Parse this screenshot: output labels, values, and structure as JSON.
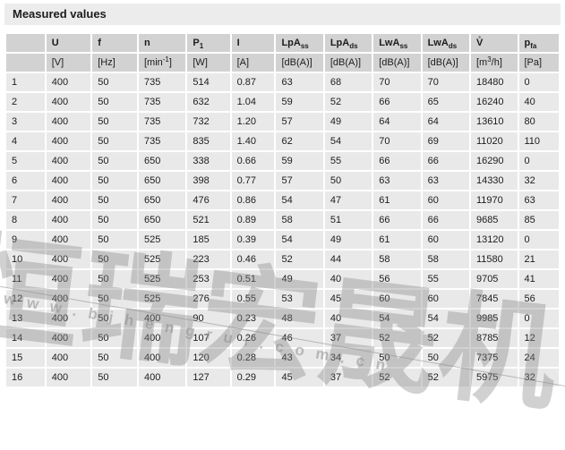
{
  "title": "Measured values",
  "colors": {
    "title-bg": "#ececec",
    "header-bg": "#d2d2d2",
    "row-bg": "#e9e9e9",
    "text": "#1c1c1c",
    "watermark": "rgba(135,135,135,0.38)",
    "watermark-strong": "rgba(140,140,140,0.55)"
  },
  "watermark": {
    "cn_text": "恒瑞宏晟机电",
    "url_text": "www.bjhengrui.com.cn"
  },
  "table": {
    "columns": [
      {
        "symbol": "",
        "unit": ""
      },
      {
        "symbol": "U",
        "unit": "[V]"
      },
      {
        "symbol": "f",
        "unit": "[Hz]"
      },
      {
        "symbol": "n",
        "unit": "[min^{-1}]"
      },
      {
        "symbol": "P_{1}",
        "unit": "[W]"
      },
      {
        "symbol": "I",
        "unit": "[A]"
      },
      {
        "symbol": "LpA_{ss}",
        "unit": "[dB(A)]"
      },
      {
        "symbol": "LpA_{ds}",
        "unit": "[dB(A)]"
      },
      {
        "symbol": "LwA_{ss}",
        "unit": "[dB(A)]"
      },
      {
        "symbol": "LwA_{ds}",
        "unit": "[dB(A)]"
      },
      {
        "symbol": "V̊",
        "unit": "[m^{3}/h]"
      },
      {
        "symbol": "p_{fa}",
        "unit": "[Pa]"
      }
    ],
    "rows": [
      [
        "1",
        "400",
        "50",
        "735",
        "514",
        "0.87",
        "63",
        "68",
        "70",
        "70",
        "18480",
        "0"
      ],
      [
        "2",
        "400",
        "50",
        "735",
        "632",
        "1.04",
        "59",
        "52",
        "66",
        "65",
        "16240",
        "40"
      ],
      [
        "3",
        "400",
        "50",
        "735",
        "732",
        "1.20",
        "57",
        "49",
        "64",
        "64",
        "13610",
        "80"
      ],
      [
        "4",
        "400",
        "50",
        "735",
        "835",
        "1.40",
        "62",
        "54",
        "70",
        "69",
        "11020",
        "110"
      ],
      [
        "5",
        "400",
        "50",
        "650",
        "338",
        "0.66",
        "59",
        "55",
        "66",
        "66",
        "16290",
        "0"
      ],
      [
        "6",
        "400",
        "50",
        "650",
        "398",
        "0.77",
        "57",
        "50",
        "63",
        "63",
        "14330",
        "32"
      ],
      [
        "7",
        "400",
        "50",
        "650",
        "476",
        "0.86",
        "54",
        "47",
        "61",
        "60",
        "11970",
        "63"
      ],
      [
        "8",
        "400",
        "50",
        "650",
        "521",
        "0.89",
        "58",
        "51",
        "66",
        "66",
        "9685",
        "85"
      ],
      [
        "9",
        "400",
        "50",
        "525",
        "185",
        "0.39",
        "54",
        "49",
        "61",
        "60",
        "13120",
        "0"
      ],
      [
        "10",
        "400",
        "50",
        "525",
        "223",
        "0.46",
        "52",
        "44",
        "58",
        "58",
        "11580",
        "21"
      ],
      [
        "11",
        "400",
        "50",
        "525",
        "253",
        "0.51",
        "49",
        "40",
        "56",
        "55",
        "9705",
        "41"
      ],
      [
        "12",
        "400",
        "50",
        "525",
        "276",
        "0.55",
        "53",
        "45",
        "60",
        "60",
        "7845",
        "56"
      ],
      [
        "13",
        "400",
        "50",
        "400",
        "90",
        "0.23",
        "48",
        "40",
        "54",
        "54",
        "9985",
        "0"
      ],
      [
        "14",
        "400",
        "50",
        "400",
        "107",
        "0.26",
        "46",
        "37",
        "52",
        "52",
        "8785",
        "12"
      ],
      [
        "15",
        "400",
        "50",
        "400",
        "120",
        "0.28",
        "43",
        "34",
        "50",
        "50",
        "7375",
        "24"
      ],
      [
        "16",
        "400",
        "50",
        "400",
        "127",
        "0.29",
        "45",
        "37",
        "52",
        "52",
        "5975",
        "32"
      ]
    ]
  }
}
